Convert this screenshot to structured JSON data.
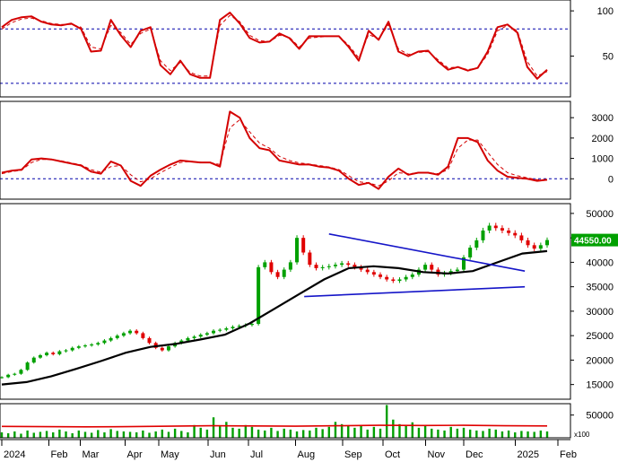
{
  "colors": {
    "background": "#ffffff",
    "oscillator_line": "#d40000",
    "signal_line": "#d40000",
    "reference_line": "#0000aa",
    "up_candle": "#00a000",
    "down_candle": "#e00000",
    "moving_average": "#000000",
    "trendline": "#1515c8",
    "volume_bar": "#00a000",
    "volume_average": "#e00000",
    "price_badge": "#00a000"
  },
  "chart_data": [
    {
      "type": "line",
      "panel": "oscillator-1",
      "ylim": [
        5,
        112
      ],
      "yticks": [
        50,
        100
      ],
      "reference_lines": [
        20,
        80
      ],
      "x_index_max": 220,
      "series": [
        {
          "style": "solid",
          "x": [
            0,
            4,
            8,
            12,
            16,
            20,
            24,
            28,
            32,
            36,
            40,
            44,
            48,
            52,
            56,
            60,
            64,
            68,
            72,
            76,
            80,
            84,
            88,
            92,
            96,
            100,
            104,
            108,
            112,
            116,
            120,
            124,
            128,
            132,
            136,
            140,
            144,
            148,
            152,
            156,
            160,
            164,
            168,
            172,
            176,
            180,
            184,
            188,
            192,
            196,
            200,
            204,
            208,
            212,
            216,
            220
          ],
          "y": [
            82,
            90,
            93,
            94,
            88,
            85,
            84,
            86,
            80,
            55,
            56,
            90,
            73,
            60,
            78,
            82,
            40,
            30,
            45,
            30,
            26,
            26,
            90,
            98,
            86,
            70,
            65,
            66,
            75,
            70,
            58,
            72,
            72,
            72,
            72,
            60,
            45,
            78,
            68,
            88,
            55,
            50,
            55,
            56,
            44,
            35,
            38,
            34,
            37,
            55,
            82,
            85,
            76,
            38,
            25,
            35
          ]
        },
        {
          "style": "dashed",
          "x": [
            0,
            4,
            8,
            12,
            16,
            20,
            24,
            28,
            32,
            36,
            40,
            44,
            48,
            52,
            56,
            60,
            64,
            68,
            72,
            76,
            80,
            84,
            88,
            92,
            96,
            100,
            104,
            108,
            112,
            116,
            120,
            124,
            128,
            132,
            136,
            140,
            144,
            148,
            152,
            156,
            160,
            164,
            168,
            172,
            176,
            180,
            184,
            188,
            192,
            196,
            200,
            204,
            208,
            212,
            216,
            220
          ],
          "y": [
            80,
            87,
            91,
            92,
            89,
            86,
            85,
            85,
            82,
            60,
            58,
            84,
            76,
            63,
            75,
            80,
            45,
            34,
            43,
            32,
            28,
            28,
            84,
            95,
            88,
            73,
            67,
            66,
            73,
            71,
            60,
            70,
            71,
            72,
            72,
            62,
            48,
            74,
            69,
            85,
            58,
            52,
            54,
            55,
            46,
            37,
            38,
            35,
            37,
            52,
            78,
            84,
            78,
            44,
            28,
            33
          ]
        }
      ]
    },
    {
      "type": "line",
      "panel": "oscillator-2",
      "ylim": [
        -1000,
        3800
      ],
      "yticks": [
        0,
        1000,
        2000,
        3000
      ],
      "reference_lines": [
        0
      ],
      "x_index_max": 220,
      "series": [
        {
          "style": "solid",
          "x": [
            0,
            4,
            8,
            12,
            16,
            20,
            24,
            28,
            32,
            36,
            40,
            44,
            48,
            52,
            56,
            60,
            64,
            68,
            72,
            76,
            80,
            84,
            88,
            92,
            96,
            100,
            104,
            108,
            112,
            116,
            120,
            124,
            128,
            132,
            136,
            140,
            144,
            148,
            152,
            156,
            160,
            164,
            168,
            172,
            176,
            180,
            184,
            188,
            192,
            196,
            200,
            204,
            208,
            212,
            216,
            220
          ],
          "y": [
            300,
            400,
            450,
            950,
            1000,
            950,
            850,
            750,
            650,
            350,
            250,
            850,
            650,
            -100,
            -350,
            150,
            450,
            700,
            900,
            850,
            800,
            800,
            600,
            3300,
            3000,
            2000,
            1500,
            1400,
            900,
            800,
            700,
            700,
            600,
            550,
            400,
            0,
            -300,
            -200,
            -500,
            100,
            500,
            200,
            300,
            300,
            200,
            600,
            2000,
            2000,
            1800,
            900,
            400,
            100,
            50,
            0,
            -100,
            -50
          ]
        },
        {
          "style": "dashed",
          "x": [
            0,
            4,
            8,
            12,
            16,
            20,
            24,
            28,
            32,
            36,
            40,
            44,
            48,
            52,
            56,
            60,
            64,
            68,
            72,
            76,
            80,
            84,
            88,
            92,
            96,
            100,
            104,
            108,
            112,
            116,
            120,
            124,
            128,
            132,
            136,
            140,
            144,
            148,
            152,
            156,
            160,
            164,
            168,
            172,
            176,
            180,
            184,
            188,
            192,
            196,
            200,
            204,
            208,
            212,
            216,
            220
          ],
          "y": [
            250,
            350,
            420,
            800,
            950,
            950,
            880,
            780,
            680,
            450,
            320,
            600,
            650,
            200,
            -150,
            0,
            300,
            550,
            800,
            850,
            820,
            800,
            700,
            2500,
            2900,
            2300,
            1750,
            1500,
            1100,
            900,
            780,
            720,
            650,
            580,
            450,
            150,
            -150,
            -200,
            -350,
            -100,
            300,
            250,
            280,
            300,
            250,
            450,
            1500,
            1900,
            1900,
            1300,
            700,
            300,
            150,
            50,
            -50,
            -50
          ]
        }
      ]
    },
    {
      "type": "candlestick",
      "panel": "price",
      "ylim": [
        12000,
        52000
      ],
      "yticks": [
        15000,
        20000,
        25000,
        30000,
        35000,
        40000,
        45000,
        50000
      ],
      "last_price_label": "44550.00",
      "x_index_max": 220,
      "close": [
        16500,
        17000,
        17200,
        18000,
        19500,
        20500,
        21000,
        21500,
        21200,
        21800,
        22000,
        22500,
        22800,
        23000,
        23200,
        23500,
        24000,
        24500,
        25000,
        25500,
        26000,
        25500,
        24500,
        23500,
        22500,
        22000,
        22800,
        23500,
        24000,
        24500,
        24800,
        25200,
        25500,
        26000,
        26200,
        26500,
        26800,
        27000,
        27200,
        27400,
        39000,
        40000,
        38000,
        37000,
        38500,
        40000,
        45000,
        42000,
        39500,
        38800,
        39000,
        39200,
        39500,
        39800,
        39500,
        39000,
        38500,
        38000,
        37500,
        37000,
        36500,
        36200,
        36500,
        37000,
        37500,
        38500,
        39500,
        38500,
        37500,
        37800,
        38200,
        38500,
        41000,
        43000,
        44500,
        46500,
        47500,
        47000,
        46500,
        46000,
        45500,
        44500,
        43500,
        42800,
        43500,
        44550
      ],
      "moving_average": {
        "x": [
          0,
          10,
          20,
          30,
          40,
          50,
          60,
          70,
          80,
          90,
          100,
          110,
          120,
          130,
          140,
          150,
          160,
          170,
          180,
          190,
          200,
          210,
          220
        ],
        "y": [
          15000,
          15500,
          16700,
          18200,
          19800,
          21500,
          22700,
          23300,
          24200,
          25200,
          27500,
          30500,
          33500,
          36500,
          38800,
          39200,
          38800,
          38000,
          37700,
          38200,
          40000,
          41800,
          42300
        ]
      },
      "trendlines": [
        {
          "x": [
            132,
            211
          ],
          "y": [
            45800,
            38200
          ]
        },
        {
          "x": [
            122,
            211
          ],
          "y": [
            33000,
            35000
          ]
        }
      ]
    },
    {
      "type": "bar",
      "panel": "volume",
      "ylim": [
        0,
        75000
      ],
      "yticks": [
        50000
      ],
      "unit_label": "x100",
      "x_index_max": 220,
      "values": [
        12000,
        10000,
        14000,
        9000,
        16000,
        11000,
        13000,
        15000,
        12000,
        18000,
        14000,
        10000,
        16000,
        13000,
        11000,
        17000,
        12000,
        19000,
        15000,
        14000,
        13000,
        12000,
        16000,
        11000,
        14000,
        18000,
        13000,
        20000,
        15000,
        12000,
        28000,
        22000,
        18000,
        45000,
        25000,
        35000,
        22000,
        20000,
        28000,
        24000,
        18000,
        16000,
        22000,
        15000,
        20000,
        18000,
        14000,
        17000,
        16000,
        22000,
        19000,
        24000,
        35000,
        30000,
        26000,
        22000,
        26000,
        18000,
        24000,
        20000,
        72000,
        40000,
        30000,
        28000,
        34000,
        22000,
        26000,
        20000,
        18000,
        16000,
        24000,
        20000,
        22000,
        18000,
        16000,
        15000,
        20000,
        18000,
        14000,
        16000,
        12000,
        15000,
        14000,
        13000,
        16000,
        14000
      ],
      "average": [
        25000,
        24500,
        24000,
        24500,
        25500,
        26500,
        26000,
        25500,
        26500,
        27500,
        27000,
        27500,
        26500,
        26000
      ]
    }
  ],
  "time_axis": {
    "labels": [
      {
        "text": "2024",
        "index": 0
      },
      {
        "text": "Feb",
        "index": 21
      },
      {
        "text": "Mar",
        "index": 35
      },
      {
        "text": "Apr",
        "index": 55
      },
      {
        "text": "May",
        "index": 70
      },
      {
        "text": "Jun",
        "index": 92
      },
      {
        "text": "Jul",
        "index": 110
      },
      {
        "text": "Aug",
        "index": 131
      },
      {
        "text": "Sep",
        "index": 152
      },
      {
        "text": "Oct",
        "index": 170
      },
      {
        "text": "Nov",
        "index": 189
      },
      {
        "text": "Dec",
        "index": 206
      },
      {
        "text": "2025",
        "index": 229
      },
      {
        "text": "Feb",
        "index": 248
      }
    ]
  }
}
